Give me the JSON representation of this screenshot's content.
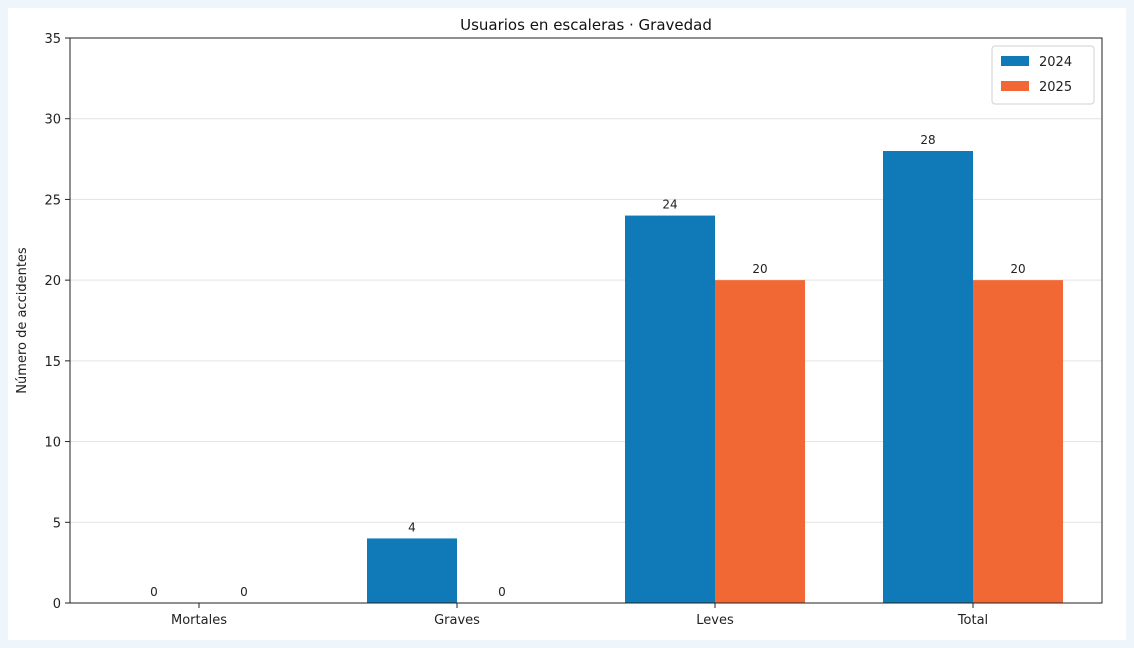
{
  "chart_data": {
    "type": "bar",
    "title": "Usuarios en escaleras · Gravedad",
    "xlabel": "",
    "ylabel": "Número de accidentes",
    "categories": [
      "Mortales",
      "Graves",
      "Leves",
      "Total"
    ],
    "series": [
      {
        "name": "2024",
        "values": [
          0,
          4,
          24,
          28
        ],
        "color": "#0f7ab7"
      },
      {
        "name": "2025",
        "values": [
          0,
          0,
          20,
          20
        ],
        "color": "#f26835"
      }
    ],
    "ylim": [
      0,
      35
    ],
    "yticks": [
      0,
      5,
      10,
      15,
      20,
      25,
      30,
      35
    ],
    "grid": "y",
    "legend_position": "top-right"
  }
}
